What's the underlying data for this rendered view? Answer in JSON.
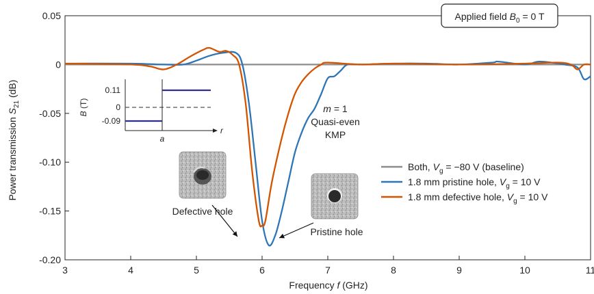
{
  "chart_data": {
    "type": "line",
    "xlabel": "Frequency f (GHz)",
    "ylabel": "Power transmission S21 (dB)",
    "xlim": [
      3,
      11
    ],
    "ylim": [
      -0.2,
      0.05
    ],
    "xticks": [
      "3",
      "4",
      "5",
      "6",
      "7",
      "8",
      "9",
      "10",
      "11"
    ],
    "yticks": [
      "0.05",
      "0",
      "-0.05",
      "-0.10",
      "-0.15",
      "-0.20"
    ],
    "grid": false,
    "legend_position": "center-right",
    "series": [
      {
        "name": "Both, Vg = −80 V (baseline)",
        "color": "#8c8c8c",
        "x": [
          3,
          11
        ],
        "y": [
          0,
          0
        ]
      },
      {
        "name": "1.8 mm pristine hole, Vg = 10 V",
        "color": "#2e75b6",
        "x": [
          3.0,
          4.0,
          4.5,
          4.8,
          5.0,
          5.2,
          5.4,
          5.6,
          5.7,
          5.8,
          5.9,
          6.0,
          6.1,
          6.2,
          6.3,
          6.4,
          6.5,
          6.6,
          6.7,
          6.8,
          6.9,
          7.0,
          7.1,
          7.2,
          7.3,
          7.5,
          8.0,
          8.5,
          9.0,
          9.5,
          9.6,
          10.0,
          10.2,
          10.4,
          10.6,
          10.8,
          10.9,
          11.0
        ],
        "y": [
          0.001,
          0.001,
          0.0,
          0.0,
          0.004,
          0.009,
          0.012,
          0.012,
          0.0,
          -0.04,
          -0.1,
          -0.16,
          -0.185,
          -0.175,
          -0.15,
          -0.12,
          -0.09,
          -0.07,
          -0.055,
          -0.045,
          -0.03,
          -0.014,
          -0.012,
          -0.006,
          0.0,
          0.0,
          0.001,
          0.001,
          0.0,
          0.002,
          0.003,
          0.0,
          0.003,
          0.002,
          0.0,
          -0.003,
          -0.015,
          -0.012
        ]
      },
      {
        "name": "1.8 mm defective hole, Vg = 10 V",
        "color": "#d35400",
        "x": [
          3.0,
          4.0,
          4.3,
          4.5,
          4.7,
          4.9,
          5.1,
          5.2,
          5.35,
          5.45,
          5.55,
          5.65,
          5.75,
          5.85,
          5.95,
          6.0,
          6.05,
          6.15,
          6.3,
          6.4,
          6.5,
          6.6,
          6.7,
          6.8,
          6.9,
          7.0,
          7.5,
          8.0,
          9.0,
          10.0,
          10.5,
          10.7,
          10.8,
          10.9,
          11.0
        ],
        "y": [
          0.001,
          0.0,
          -0.002,
          -0.005,
          0.0,
          0.008,
          0.015,
          0.017,
          0.013,
          0.014,
          0.01,
          0.0,
          -0.04,
          -0.11,
          -0.16,
          -0.165,
          -0.16,
          -0.12,
          -0.075,
          -0.05,
          -0.03,
          -0.018,
          -0.01,
          -0.004,
          0.0,
          0.002,
          0.0,
          0.001,
          0.0,
          0.001,
          0.002,
          0.0,
          -0.005,
          0.0,
          0.0
        ]
      }
    ],
    "annotations": {
      "applied_field_box": "Applied field B0 = 0 T",
      "mode_line1": "m = 1",
      "mode_line2": "Quasi-even",
      "mode_line3": "KMP",
      "defective_label": "Defective hole",
      "pristine_label": "Pristine hole"
    },
    "inset": {
      "ylabel": "B (T)",
      "xlabel": "r",
      "xtick": "a",
      "yticks": [
        "0.11",
        "0",
        "-0.09"
      ],
      "color": "#2e2e8e"
    }
  }
}
